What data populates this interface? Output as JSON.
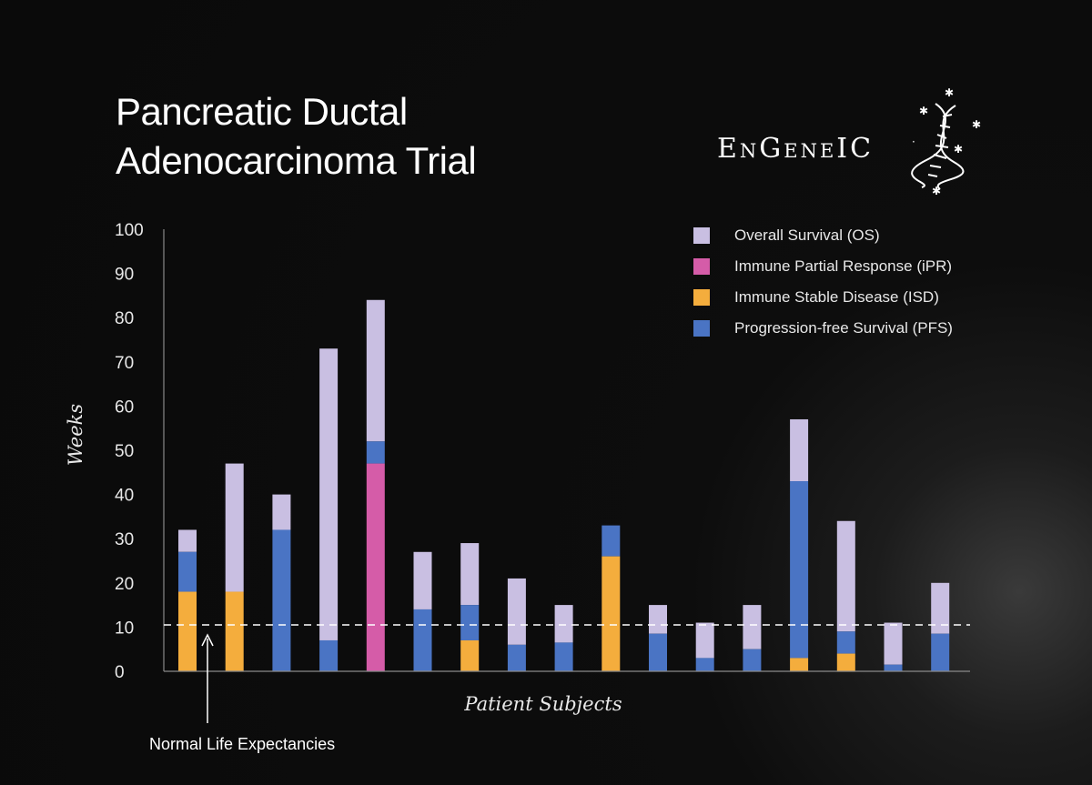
{
  "title": [
    "Pancreatic Ductal",
    "Adenocarcinoma Trial"
  ],
  "logo": {
    "text": "EnGeneIC"
  },
  "annotation": "Normal Life Expectancies",
  "chart_data": {
    "type": "bar",
    "stacked": true,
    "xlabel": "Patient Subjects",
    "ylabel": "Weeks",
    "ylim": [
      0,
      100
    ],
    "yticks": [
      0,
      10,
      20,
      30,
      40,
      50,
      60,
      70,
      80,
      90,
      100
    ],
    "reference_line": 10.5,
    "legend_position": "top-right",
    "legend": [
      {
        "key": "os",
        "name": "Overall Survival (OS)",
        "color": "#c9bfe2"
      },
      {
        "key": "ipr",
        "name": "Immune Partial Response (iPR)",
        "color": "#d55ca8"
      },
      {
        "key": "isd",
        "name": "Immune Stable Disease (ISD)",
        "color": "#f4ad3d"
      },
      {
        "key": "pfs",
        "name": "Progression-free Survival (PFS)",
        "color": "#4a74c4"
      }
    ],
    "bars": [
      {
        "isd": 18,
        "ipr": 0,
        "pfs": 27,
        "os": 32
      },
      {
        "isd": 18,
        "ipr": 0,
        "pfs": 18,
        "os": 47
      },
      {
        "isd": 0,
        "ipr": 0,
        "pfs": 32,
        "os": 40
      },
      {
        "isd": 0,
        "ipr": 0,
        "pfs": 7,
        "os": 73
      },
      {
        "isd": 0,
        "ipr": 47,
        "pfs": 52,
        "os": 84
      },
      {
        "isd": 0,
        "ipr": 0,
        "pfs": 14,
        "os": 27
      },
      {
        "isd": 7,
        "ipr": 0,
        "pfs": 15,
        "os": 29
      },
      {
        "isd": 0,
        "ipr": 0,
        "pfs": 6,
        "os": 21
      },
      {
        "isd": 0,
        "ipr": 0,
        "pfs": 6.5,
        "os": 15
      },
      {
        "isd": 26,
        "ipr": 0,
        "pfs": 33,
        "os": 33
      },
      {
        "isd": 0,
        "ipr": 0,
        "pfs": 8.5,
        "os": 15
      },
      {
        "isd": 0,
        "ipr": 0,
        "pfs": 3,
        "os": 11
      },
      {
        "isd": 0,
        "ipr": 0,
        "pfs": 5,
        "os": 15
      },
      {
        "isd": 3,
        "ipr": 0,
        "pfs": 43,
        "os": 57
      },
      {
        "isd": 4,
        "ipr": 0,
        "pfs": 9,
        "os": 34
      },
      {
        "isd": 0,
        "ipr": 0,
        "pfs": 1.5,
        "os": 11
      },
      {
        "isd": 0,
        "ipr": 0,
        "pfs": 8.5,
        "os": 20
      }
    ]
  }
}
